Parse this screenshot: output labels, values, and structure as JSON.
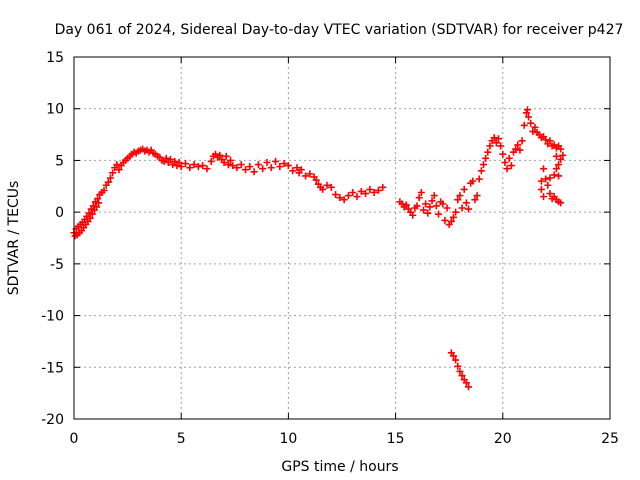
{
  "chart_data": {
    "type": "scatter",
    "title": "Day 061 of 2024, Sidereal Day-to-day VTEC variation (SDTVAR) for receiver p427",
    "xlabel": "GPS time / hours",
    "ylabel": "SDTVAR / TECUs",
    "xlim": [
      0,
      25
    ],
    "ylim": [
      -20,
      15
    ],
    "xticks": [
      "0",
      "5",
      "10",
      "15",
      "20",
      "25"
    ],
    "yticks": [
      "-20",
      "-15",
      "-10",
      "-5",
      "0",
      "5",
      "10",
      "15"
    ],
    "grid": true,
    "marker": "plus",
    "color": "#ff0000",
    "series": [
      {
        "name": "SDTVAR",
        "points": [
          [
            0.0,
            -2.0
          ],
          [
            0.05,
            -2.3
          ],
          [
            0.1,
            -1.6
          ],
          [
            0.15,
            -2.2
          ],
          [
            0.2,
            -1.4
          ],
          [
            0.25,
            -2.0
          ],
          [
            0.3,
            -1.2
          ],
          [
            0.35,
            -1.8
          ],
          [
            0.4,
            -1.0
          ],
          [
            0.45,
            -1.5
          ],
          [
            0.5,
            -0.7
          ],
          [
            0.55,
            -1.2
          ],
          [
            0.6,
            -0.4
          ],
          [
            0.65,
            -0.9
          ],
          [
            0.7,
            -0.1
          ],
          [
            0.75,
            -0.6
          ],
          [
            0.8,
            0.3
          ],
          [
            0.85,
            -0.2
          ],
          [
            0.9,
            0.6
          ],
          [
            0.95,
            0.2
          ],
          [
            1.0,
            1.0
          ],
          [
            1.05,
            0.5
          ],
          [
            1.1,
            1.3
          ],
          [
            1.15,
            0.9
          ],
          [
            1.2,
            1.7
          ],
          [
            1.3,
            1.9
          ],
          [
            1.4,
            2.1
          ],
          [
            1.5,
            2.6
          ],
          [
            1.6,
            2.9
          ],
          [
            1.7,
            3.3
          ],
          [
            1.8,
            3.8
          ],
          [
            1.9,
            4.3
          ],
          [
            2.0,
            4.6
          ],
          [
            2.1,
            4.1
          ],
          [
            2.2,
            4.5
          ],
          [
            2.3,
            4.8
          ],
          [
            2.4,
            5.0
          ],
          [
            2.5,
            5.2
          ],
          [
            2.6,
            5.4
          ],
          [
            2.7,
            5.6
          ],
          [
            2.8,
            5.8
          ],
          [
            2.9,
            5.7
          ],
          [
            3.0,
            5.9
          ],
          [
            3.1,
            6.0
          ],
          [
            3.2,
            6.1
          ],
          [
            3.3,
            5.9
          ],
          [
            3.4,
            6.0
          ],
          [
            3.5,
            5.8
          ],
          [
            3.6,
            6.0
          ],
          [
            3.7,
            5.7
          ],
          [
            3.8,
            5.6
          ],
          [
            3.9,
            5.4
          ],
          [
            4.0,
            5.3
          ],
          [
            4.1,
            5.0
          ],
          [
            4.2,
            4.9
          ],
          [
            4.3,
            5.2
          ],
          [
            4.4,
            4.8
          ],
          [
            4.5,
            5.1
          ],
          [
            4.6,
            4.6
          ],
          [
            4.7,
            4.9
          ],
          [
            4.8,
            4.5
          ],
          [
            4.9,
            4.8
          ],
          [
            5.0,
            4.4
          ],
          [
            5.2,
            4.7
          ],
          [
            5.4,
            4.3
          ],
          [
            5.6,
            4.6
          ],
          [
            5.8,
            4.4
          ],
          [
            6.0,
            4.5
          ],
          [
            6.2,
            4.2
          ],
          [
            6.4,
            4.9
          ],
          [
            6.5,
            5.4
          ],
          [
            6.6,
            5.6
          ],
          [
            6.7,
            5.3
          ],
          [
            6.8,
            5.5
          ],
          [
            6.9,
            5.1
          ],
          [
            7.0,
            4.8
          ],
          [
            7.1,
            5.4
          ],
          [
            7.2,
            4.6
          ],
          [
            7.3,
            5.0
          ],
          [
            7.4,
            4.5
          ],
          [
            7.6,
            4.3
          ],
          [
            7.8,
            4.6
          ],
          [
            8.0,
            4.1
          ],
          [
            8.2,
            4.4
          ],
          [
            8.4,
            3.9
          ],
          [
            8.6,
            4.6
          ],
          [
            8.8,
            4.2
          ],
          [
            9.0,
            4.8
          ],
          [
            9.2,
            4.3
          ],
          [
            9.4,
            4.9
          ],
          [
            9.6,
            4.4
          ],
          [
            9.8,
            4.7
          ],
          [
            10.0,
            4.5
          ],
          [
            10.2,
            4.0
          ],
          [
            10.4,
            4.3
          ],
          [
            10.5,
            3.8
          ],
          [
            10.6,
            4.1
          ],
          [
            10.8,
            3.5
          ],
          [
            11.0,
            3.7
          ],
          [
            11.2,
            3.4
          ],
          [
            11.3,
            3.1
          ],
          [
            11.4,
            2.7
          ],
          [
            11.5,
            2.4
          ],
          [
            11.6,
            2.2
          ],
          [
            11.8,
            2.6
          ],
          [
            12.0,
            2.4
          ],
          [
            12.2,
            1.7
          ],
          [
            12.4,
            1.4
          ],
          [
            12.6,
            1.2
          ],
          [
            12.8,
            1.6
          ],
          [
            13.0,
            1.9
          ],
          [
            13.2,
            1.5
          ],
          [
            13.4,
            2.0
          ],
          [
            13.6,
            1.8
          ],
          [
            13.8,
            2.2
          ],
          [
            14.0,
            1.9
          ],
          [
            14.2,
            2.1
          ],
          [
            14.4,
            2.4
          ],
          [
            15.2,
            1.0
          ],
          [
            15.3,
            0.8
          ],
          [
            15.4,
            0.5
          ],
          [
            15.5,
            0.7
          ],
          [
            15.6,
            0.3
          ],
          [
            15.7,
            0.0
          ],
          [
            15.8,
            -0.3
          ],
          [
            15.9,
            0.4
          ],
          [
            16.0,
            0.6
          ],
          [
            16.1,
            1.4
          ],
          [
            16.2,
            1.9
          ],
          [
            16.3,
            0.2
          ],
          [
            16.4,
            0.8
          ],
          [
            16.5,
            -0.1
          ],
          [
            16.6,
            0.5
          ],
          [
            16.7,
            1.1
          ],
          [
            16.8,
            1.6
          ],
          [
            16.9,
            0.6
          ],
          [
            17.0,
            -0.2
          ],
          [
            17.1,
            1.0
          ],
          [
            17.2,
            0.8
          ],
          [
            17.3,
            -0.8
          ],
          [
            17.4,
            0.4
          ],
          [
            17.5,
            -1.2
          ],
          [
            17.6,
            -0.9
          ],
          [
            17.7,
            -0.5
          ],
          [
            17.8,
            0.0
          ],
          [
            17.9,
            1.2
          ],
          [
            18.0,
            1.6
          ],
          [
            18.1,
            0.4
          ],
          [
            18.2,
            2.2
          ],
          [
            18.3,
            0.9
          ],
          [
            18.4,
            0.3
          ],
          [
            18.5,
            2.8
          ],
          [
            18.6,
            3.0
          ],
          [
            18.7,
            1.2
          ],
          [
            18.8,
            1.6
          ],
          [
            18.9,
            3.2
          ],
          [
            19.0,
            4.0
          ],
          [
            19.1,
            4.6
          ],
          [
            19.2,
            5.2
          ],
          [
            19.3,
            5.8
          ],
          [
            19.4,
            6.4
          ],
          [
            19.5,
            6.9
          ],
          [
            19.6,
            7.2
          ],
          [
            19.7,
            6.7
          ],
          [
            19.8,
            7.1
          ],
          [
            19.9,
            6.4
          ],
          [
            20.0,
            5.6
          ],
          [
            20.1,
            4.8
          ],
          [
            20.2,
            4.2
          ],
          [
            20.3,
            5.2
          ],
          [
            20.4,
            4.5
          ],
          [
            20.5,
            5.8
          ],
          [
            20.6,
            6.1
          ],
          [
            20.7,
            6.5
          ],
          [
            20.8,
            6.0
          ],
          [
            20.9,
            6.9
          ],
          [
            21.0,
            8.4
          ],
          [
            21.1,
            9.6
          ],
          [
            21.15,
            9.9
          ],
          [
            21.2,
            9.2
          ],
          [
            21.3,
            8.6
          ],
          [
            21.4,
            7.8
          ],
          [
            21.5,
            8.2
          ],
          [
            21.6,
            7.7
          ],
          [
            21.7,
            7.5
          ],
          [
            21.8,
            7.2
          ],
          [
            21.9,
            7.3
          ],
          [
            22.0,
            7.0
          ],
          [
            22.1,
            6.6
          ],
          [
            22.2,
            6.9
          ],
          [
            22.3,
            6.4
          ],
          [
            22.4,
            6.5
          ],
          [
            22.5,
            6.2
          ],
          [
            22.6,
            6.4
          ],
          [
            22.7,
            6.1
          ],
          [
            21.9,
            4.2
          ],
          [
            22.0,
            3.2
          ],
          [
            22.1,
            2.6
          ],
          [
            22.2,
            1.8
          ],
          [
            22.3,
            1.3
          ],
          [
            22.4,
            1.5
          ],
          [
            22.5,
            1.2
          ],
          [
            22.6,
            1.0
          ],
          [
            22.7,
            0.9
          ],
          [
            22.2,
            3.3
          ],
          [
            22.4,
            3.6
          ],
          [
            22.5,
            4.2
          ],
          [
            22.6,
            4.6
          ],
          [
            22.7,
            5.1
          ],
          [
            22.8,
            5.5
          ],
          [
            21.8,
            3.0
          ],
          [
            21.8,
            2.2
          ],
          [
            21.9,
            1.5
          ],
          [
            22.5,
            5.4
          ],
          [
            22.6,
            3.5
          ],
          [
            17.6,
            -13.6
          ],
          [
            17.7,
            -13.9
          ],
          [
            17.8,
            -14.3
          ],
          [
            17.9,
            -14.9
          ],
          [
            18.0,
            -15.4
          ],
          [
            18.1,
            -15.8
          ],
          [
            18.2,
            -16.2
          ],
          [
            18.3,
            -16.5
          ],
          [
            18.4,
            -16.9
          ]
        ]
      }
    ]
  }
}
